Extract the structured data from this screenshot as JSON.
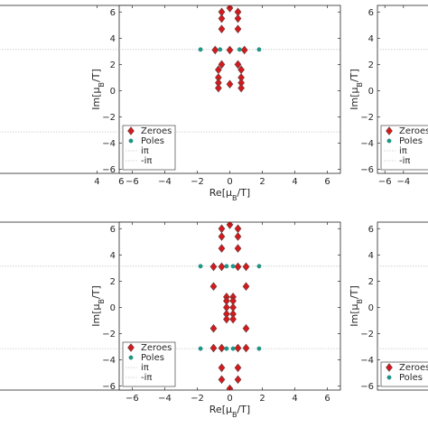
{
  "colors": {
    "zero": "#d7191c",
    "zero_edge": "#6b3a3a",
    "pole": "#1a9a8a",
    "ref_line": "#c8c8c8",
    "axes": "#262626"
  },
  "chart_data": [
    {
      "type": "scatter",
      "panel": "top-left",
      "xlabel": "",
      "ylabel": "",
      "xlim": [
        -7,
        6.8
      ],
      "ylim": [
        -6.3,
        6.5
      ],
      "xticks": [
        "4",
        "6"
      ],
      "yticks": [],
      "hlines": [
        3.1416,
        -3.1416
      ],
      "series": []
    },
    {
      "type": "scatter",
      "panel": "top-center",
      "xlabel": "Re[μ_B/T]",
      "ylabel": "Im[μ_B/T]",
      "xlim": [
        -6.8,
        6.8
      ],
      "ylim": [
        -6.3,
        6.5
      ],
      "xticks": [
        "-6",
        "-4",
        "-2",
        "0",
        "2",
        "4",
        "6"
      ],
      "yticks": [
        "-6",
        "-4",
        "-2",
        "0",
        "2",
        "4",
        "6"
      ],
      "grid": false,
      "hlines": [
        3.1416,
        -3.1416
      ],
      "series": [
        {
          "name": "Zeroes",
          "marker": "diamond",
          "x": [
            0.0,
            -0.5,
            0.5,
            -0.5,
            0.5,
            -0.5,
            0.5,
            -0.9,
            0.0,
            0.9,
            -0.5,
            0.5,
            -0.7,
            0.7,
            -0.7,
            0.7,
            -0.7,
            0.7,
            -0.7,
            0.0,
            0.7
          ],
          "y": [
            6.3,
            6.0,
            6.0,
            5.5,
            5.5,
            4.7,
            4.7,
            3.1,
            3.1,
            3.1,
            2.0,
            2.0,
            1.6,
            1.6,
            1.0,
            1.0,
            0.6,
            0.6,
            0.2,
            0.5,
            0.2
          ]
        },
        {
          "name": "Poles",
          "marker": "circle",
          "x": [
            -1.8,
            -0.6,
            0.6,
            1.8
          ],
          "y": [
            3.14,
            3.14,
            3.14,
            3.14
          ]
        }
      ],
      "legend": [
        "Zeroes",
        "Poles",
        "iπ",
        "-iπ"
      ],
      "legend_position": "bottom-left"
    },
    {
      "type": "scatter",
      "panel": "top-right",
      "xlabel": "",
      "ylabel": "Im[μ_B/T]",
      "xlim": [
        -6.8,
        6.8
      ],
      "ylim": [
        -6.3,
        6.5
      ],
      "xticks": [
        "-6",
        "-4"
      ],
      "yticks": [
        "-6",
        "-4",
        "-2",
        "0",
        "2",
        "4",
        "6"
      ],
      "hlines": [
        3.1416,
        -3.1416
      ],
      "legend": [
        "Zeroes",
        "Poles",
        "iπ",
        "-iπ"
      ],
      "legend_position": "bottom-left",
      "series": []
    },
    {
      "type": "scatter",
      "panel": "bottom-left",
      "xlabel": "",
      "ylabel": "",
      "xlim": [
        -7,
        6.8
      ],
      "ylim": [
        -6.3,
        6.5
      ],
      "xticks": [],
      "yticks": [],
      "hlines": [
        3.1416,
        -3.1416
      ],
      "series": []
    },
    {
      "type": "scatter",
      "panel": "bottom-center",
      "xlabel": "Re[μ_B/T]",
      "ylabel": "Im[μ_B/T]",
      "xlim": [
        -6.8,
        6.8
      ],
      "ylim": [
        -6.3,
        6.5
      ],
      "xticks": [
        "-6",
        "-4",
        "-2",
        "0",
        "2",
        "4",
        "6"
      ],
      "yticks": [
        "-6",
        "-4",
        "-2",
        "0",
        "2",
        "4",
        "6"
      ],
      "grid": false,
      "hlines": [
        3.1416,
        -3.1416
      ],
      "series": [
        {
          "name": "Zeroes",
          "marker": "diamond",
          "x": [
            0.0,
            -0.5,
            0.5,
            -0.5,
            0.5,
            -0.5,
            0.5,
            -1.0,
            -0.5,
            0.5,
            1.0,
            -1.0,
            1.0,
            -0.2,
            0.2,
            -0.2,
            0.2,
            -0.2,
            0.2,
            -0.2,
            0.2,
            -0.2,
            0.2,
            -1.0,
            1.0,
            -1.0,
            -0.5,
            0.5,
            1.0,
            -0.5,
            0.5,
            -0.5,
            0.5,
            0.0
          ],
          "y": [
            6.3,
            6.0,
            6.0,
            5.4,
            5.4,
            4.5,
            4.5,
            3.1,
            3.1,
            3.1,
            3.1,
            1.6,
            1.6,
            0.8,
            0.8,
            0.5,
            0.5,
            -0.5,
            -0.5,
            -0.9,
            -0.9,
            0.0,
            0.0,
            -1.6,
            -1.6,
            -3.1,
            -3.1,
            -3.1,
            -3.1,
            -4.6,
            -4.6,
            -5.5,
            -5.5,
            -6.2
          ]
        },
        {
          "name": "Poles",
          "marker": "circle",
          "x": [
            -1.8,
            -0.2,
            0.2,
            1.8,
            -1.8,
            -0.2,
            0.2,
            1.8
          ],
          "y": [
            3.14,
            3.14,
            3.14,
            3.14,
            -3.14,
            -3.14,
            -3.14,
            -3.14
          ]
        }
      ],
      "legend": [
        "Zeroes",
        "Poles",
        "iπ",
        "-iπ"
      ],
      "legend_position": "bottom-left"
    },
    {
      "type": "scatter",
      "panel": "bottom-right",
      "xlabel": "",
      "ylabel": "Im[μ_B/T]",
      "xlim": [
        -6.8,
        6.8
      ],
      "ylim": [
        -6.3,
        6.5
      ],
      "xticks": [],
      "yticks": [
        "-6",
        "-4",
        "-2",
        "0",
        "2",
        "4",
        "6"
      ],
      "hlines": [
        3.1416,
        -3.1416
      ],
      "legend": [
        "Zeroes",
        "Poles"
      ],
      "legend_position": "bottom-left",
      "series": []
    }
  ]
}
